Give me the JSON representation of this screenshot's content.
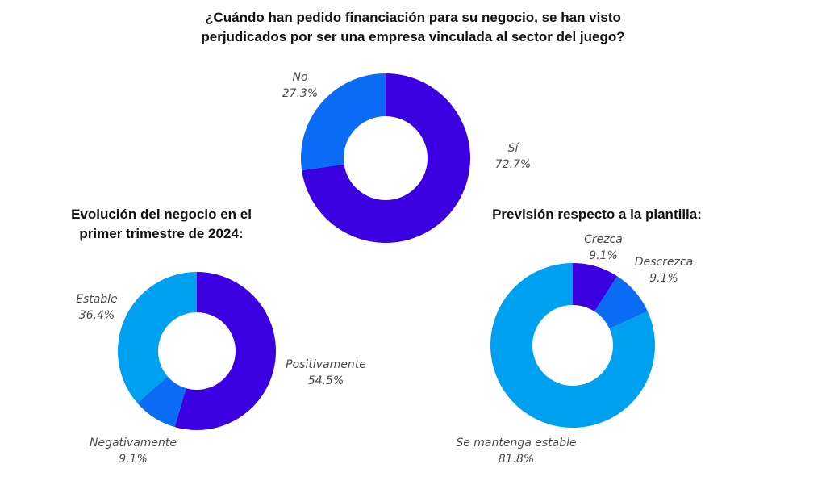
{
  "chart_data": [
    {
      "type": "pie",
      "title_lines": [
        "¿Cuándo han pedido financiación para su negocio, se han visto",
        "perjudicados por ser una empresa vinculada al sector del juego?"
      ],
      "slices": [
        {
          "label": "Sí",
          "value": 72.7,
          "value_text": "72.7%",
          "color": "#3a00e0"
        },
        {
          "label": "No",
          "value": 27.3,
          "value_text": "27.3%",
          "color": "#0a6cf5"
        }
      ]
    },
    {
      "type": "pie",
      "title_lines": [
        "Evolución del negocio en el",
        "primer trimestre de 2024:"
      ],
      "slices": [
        {
          "label": "Positivamente",
          "value": 54.5,
          "value_text": "54.5%",
          "color": "#3a00e0"
        },
        {
          "label": "Negativamente",
          "value": 9.1,
          "value_text": "9.1%",
          "color": "#0a6cf5"
        },
        {
          "label": "Estable",
          "value": 36.4,
          "value_text": "36.4%",
          "color": "#00a0f0"
        }
      ]
    },
    {
      "type": "pie",
      "title_lines": [
        "Previsión respecto a la plantilla:"
      ],
      "slices": [
        {
          "label": "Crezca",
          "value": 9.1,
          "value_text": "9.1%",
          "color": "#3a00e0"
        },
        {
          "label": "Descrezca",
          "value": 9.1,
          "value_text": "9.1%",
          "color": "#0a6cf5"
        },
        {
          "label": "Se mantenga estable",
          "value": 81.8,
          "value_text": "81.8%",
          "color": "#00a0f0"
        }
      ]
    }
  ]
}
